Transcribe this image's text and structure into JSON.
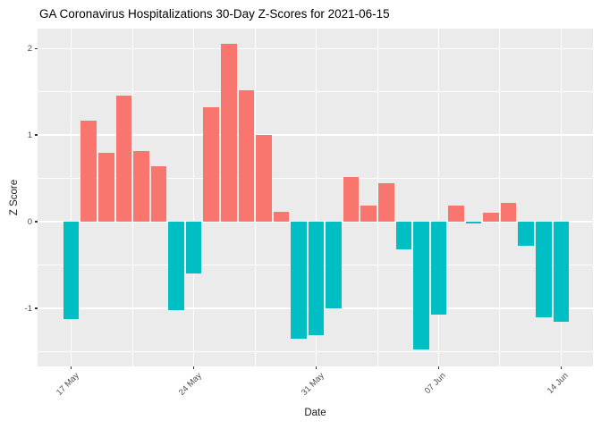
{
  "chart_data": {
    "type": "bar",
    "title": "GA Coronavirus Hospitalizations 30-Day Z-Scores for 2021-06-15",
    "xlabel": "Date",
    "ylabel": "Z Score",
    "categories": [
      "2021-05-17",
      "2021-05-18",
      "2021-05-19",
      "2021-05-20",
      "2021-05-21",
      "2021-05-22",
      "2021-05-23",
      "2021-05-24",
      "2021-05-25",
      "2021-05-26",
      "2021-05-27",
      "2021-05-28",
      "2021-05-29",
      "2021-05-30",
      "2021-05-31",
      "2021-06-01",
      "2021-06-02",
      "2021-06-03",
      "2021-06-04",
      "2021-06-05",
      "2021-06-06",
      "2021-06-07",
      "2021-06-08",
      "2021-06-09",
      "2021-06-10",
      "2021-06-11",
      "2021-06-12",
      "2021-06-13",
      "2021-06-14"
    ],
    "values": [
      -1.12,
      1.17,
      0.8,
      1.46,
      0.82,
      0.64,
      -1.02,
      -0.6,
      1.32,
      2.05,
      1.52,
      1.0,
      0.11,
      -1.35,
      -1.31,
      -1.0,
      0.52,
      0.19,
      0.45,
      -0.32,
      -1.47,
      -1.07,
      0.19,
      -0.02,
      0.1,
      0.22,
      -0.28,
      -1.1,
      -1.15
    ],
    "x_tick_labels": [
      "17 May",
      "24 May",
      "31 May",
      "07 Jun",
      "14 Jun"
    ],
    "x_tick_indices": [
      0,
      7,
      14,
      21,
      28
    ],
    "y_tick_values": [
      -1,
      0,
      1,
      2
    ],
    "y_tick_labels": [
      "-1",
      "0",
      "1",
      "2"
    ],
    "y_minor_ticks": [
      -1.5,
      -0.5,
      0.5,
      1.5
    ],
    "ylim": [
      -1.67,
      2.23
    ],
    "grid": true,
    "legend": "none",
    "colors": {
      "positive_bar": "#F8766D",
      "negative_bar": "#00BFC4",
      "panel_background": "#EBEBEB",
      "gridline": "#FFFFFF",
      "axis_text": "#4D4D4D",
      "tick_mark": "#333333",
      "title_text": "#000000"
    }
  }
}
